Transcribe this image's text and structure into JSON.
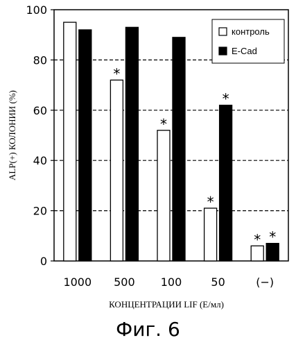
{
  "chart_data": {
    "type": "bar",
    "categories": [
      "1000",
      "500",
      "100",
      "50",
      "(−)"
    ],
    "series": [
      {
        "name": "контроль",
        "values": [
          95,
          72,
          52,
          21,
          6
        ],
        "color": "#ffffff"
      },
      {
        "name": "E-Cad",
        "values": [
          92,
          93,
          89,
          62,
          7
        ],
        "color": "#000000"
      }
    ],
    "significance": [
      {
        "series": 0,
        "category": 1,
        "mark": "*"
      },
      {
        "series": 0,
        "category": 2,
        "mark": "*"
      },
      {
        "series": 0,
        "category": 3,
        "mark": "*"
      },
      {
        "series": 1,
        "category": 3,
        "mark": "*"
      },
      {
        "series": 0,
        "category": 4,
        "mark": "*"
      },
      {
        "series": 1,
        "category": 4,
        "mark": "*"
      }
    ],
    "ylabel": "ALP(+) КОЛОНИИ (%)",
    "xlabel": "КОНЦЕНТРАЦИИ LIF (Е/мл)",
    "ylim": [
      0,
      100
    ],
    "yticks": [
      0,
      20,
      40,
      60,
      80,
      100
    ],
    "grid": "dashed horizontal",
    "legend": "top-right"
  },
  "caption": "Фиг. 6"
}
